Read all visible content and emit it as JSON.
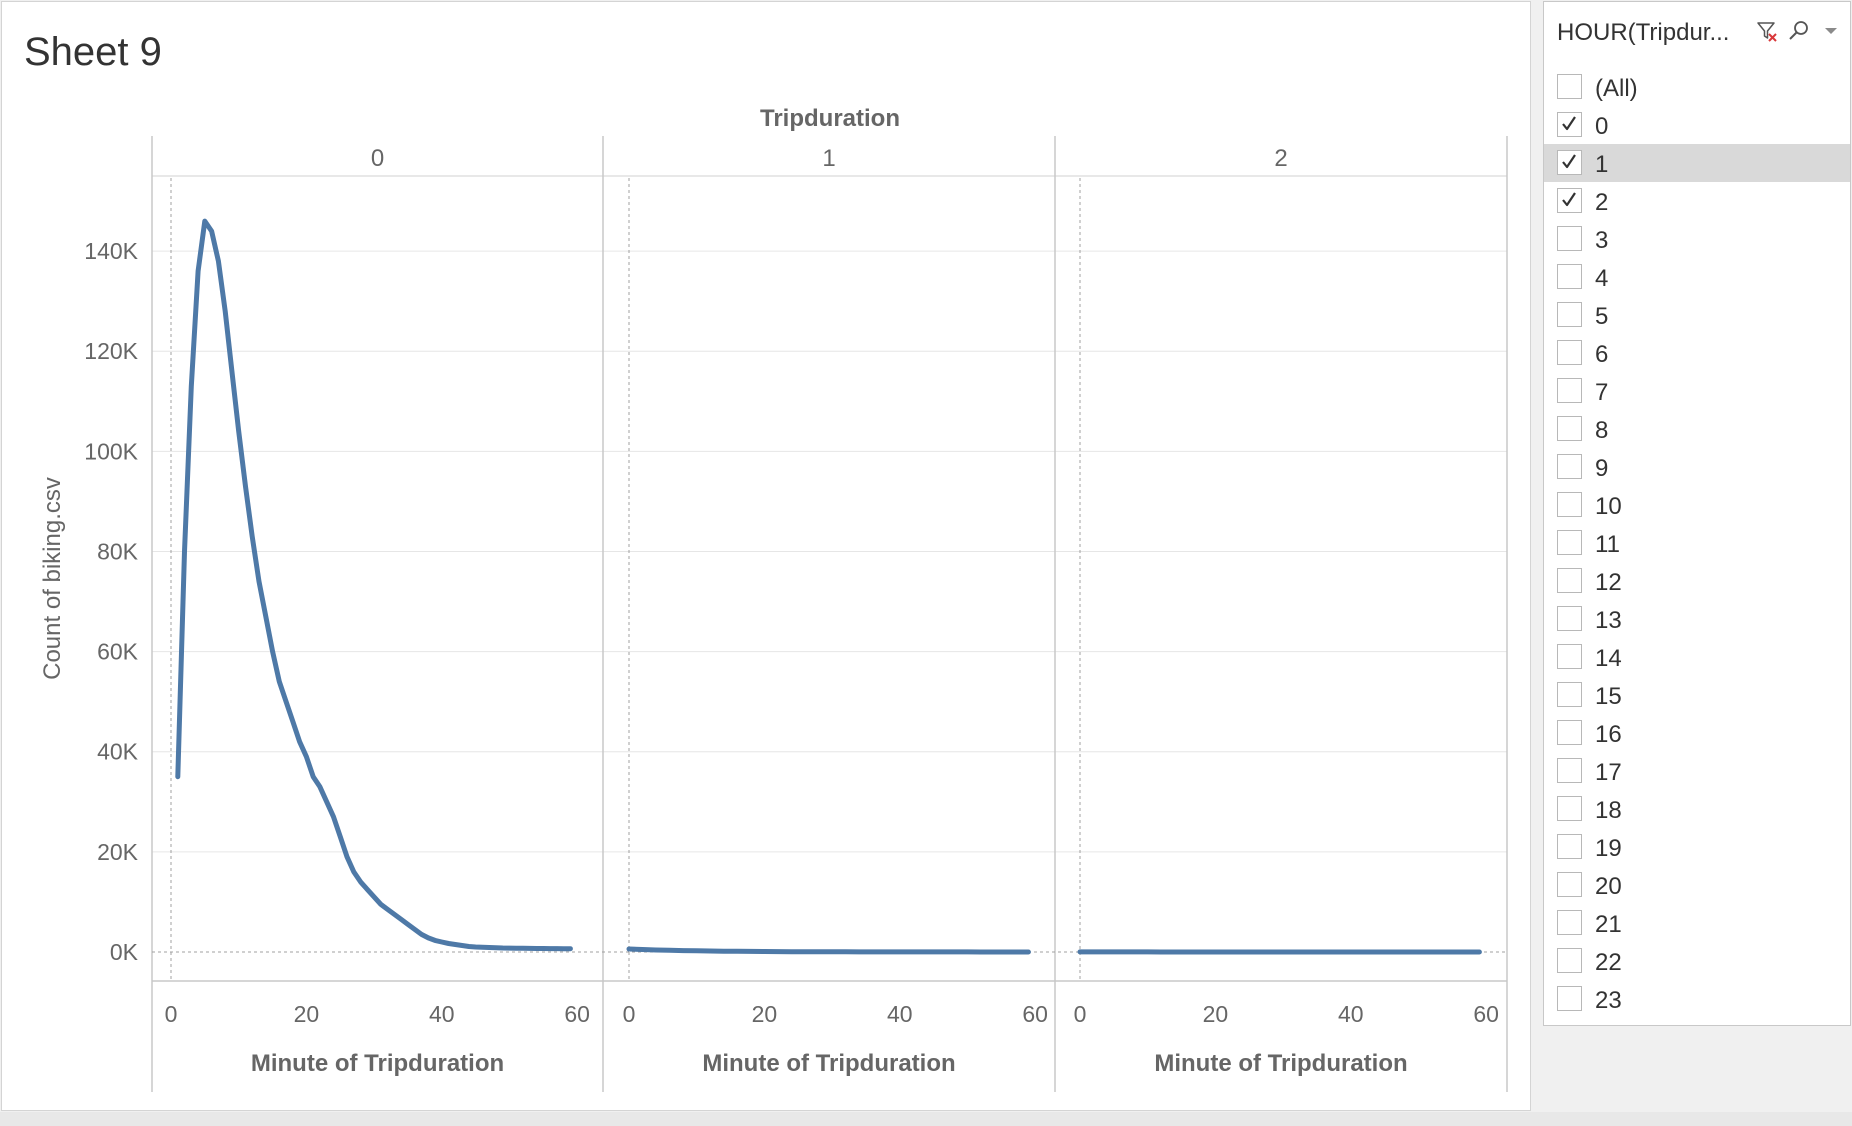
{
  "sheet": {
    "title": "Sheet 9"
  },
  "colors": {
    "line": "#4e79a7",
    "grid": "#e6e6e6",
    "panel_border": "#c8c8c8",
    "zero_line": "#a0a0a0",
    "text": "#666666",
    "hover_row": "#d9d9d9"
  },
  "chart_data": {
    "type": "line",
    "title": "",
    "column_header": "Tripduration",
    "xlabel": "Minute of Tripduration",
    "ylabel": "Count of biking.csv",
    "xlim": [
      0,
      60
    ],
    "ylim": [
      -5800,
      155000
    ],
    "y_ticks": [
      0,
      20000,
      40000,
      60000,
      80000,
      100000,
      120000,
      140000
    ],
    "y_tick_labels": [
      "0K",
      "20K",
      "40K",
      "60K",
      "80K",
      "100K",
      "120K",
      "140K"
    ],
    "x_ticks": [
      0,
      20,
      40,
      60
    ],
    "x_tick_labels": [
      "0",
      "20",
      "40",
      "60"
    ],
    "grid": true,
    "panels": [
      {
        "name": "0",
        "x": [
          1,
          2,
          3,
          4,
          5,
          6,
          7,
          8,
          9,
          10,
          11,
          12,
          13,
          14,
          15,
          16,
          17,
          18,
          19,
          20,
          21,
          22,
          23,
          24,
          25,
          26,
          27,
          28,
          29,
          30,
          31,
          32,
          33,
          34,
          35,
          36,
          37,
          38,
          39,
          40,
          41,
          42,
          43,
          44,
          45,
          46,
          47,
          48,
          49,
          50,
          51,
          52,
          53,
          54,
          55,
          56,
          57,
          58,
          59
        ],
        "y": [
          35000,
          80000,
          113000,
          136000,
          146000,
          144000,
          138000,
          128000,
          116000,
          104000,
          93000,
          83000,
          74000,
          67000,
          60000,
          54000,
          50000,
          46000,
          42000,
          39000,
          35000,
          33000,
          30000,
          27000,
          23000,
          19000,
          16000,
          14000,
          12500,
          11000,
          9500,
          8500,
          7500,
          6500,
          5500,
          4500,
          3500,
          2800,
          2300,
          2000,
          1700,
          1500,
          1300,
          1100,
          1000,
          950,
          900,
          850,
          800,
          780,
          760,
          740,
          720,
          700,
          690,
          680,
          670,
          660,
          650
        ]
      },
      {
        "name": "1",
        "x": [
          0,
          2,
          4,
          6,
          8,
          10,
          12,
          14,
          16,
          18,
          20,
          22,
          24,
          26,
          28,
          30,
          32,
          34,
          36,
          38,
          40,
          42,
          44,
          46,
          48,
          50,
          52,
          54,
          56,
          58,
          59
        ],
        "y": [
          600,
          500,
          400,
          330,
          280,
          230,
          190,
          160,
          130,
          110,
          90,
          75,
          60,
          50,
          40,
          30,
          25,
          20,
          15,
          12,
          10,
          8,
          6,
          5,
          4,
          3,
          2,
          2,
          1,
          1,
          1
        ]
      },
      {
        "name": "2",
        "x": [
          0,
          2,
          4,
          6,
          8,
          10,
          12,
          14,
          16,
          18,
          20,
          22,
          24,
          26,
          28,
          30,
          32,
          34,
          36,
          38,
          40,
          42,
          44,
          46,
          48,
          50,
          52,
          54,
          56,
          58,
          59
        ],
        "y": [
          5,
          4,
          4,
          3,
          3,
          3,
          2,
          2,
          2,
          2,
          2,
          1,
          1,
          1,
          1,
          1,
          1,
          1,
          1,
          1,
          1,
          1,
          1,
          1,
          1,
          1,
          1,
          1,
          1,
          1,
          1
        ]
      }
    ]
  },
  "filter": {
    "title": "HOUR(Tripdur...",
    "icons": [
      "clear-filter-icon",
      "search-icon",
      "dropdown-icon"
    ],
    "items": [
      {
        "label": "(All)",
        "checked": false
      },
      {
        "label": "0",
        "checked": true
      },
      {
        "label": "1",
        "checked": true,
        "hover": true
      },
      {
        "label": "2",
        "checked": true
      },
      {
        "label": "3",
        "checked": false
      },
      {
        "label": "4",
        "checked": false
      },
      {
        "label": "5",
        "checked": false
      },
      {
        "label": "6",
        "checked": false
      },
      {
        "label": "7",
        "checked": false
      },
      {
        "label": "8",
        "checked": false
      },
      {
        "label": "9",
        "checked": false
      },
      {
        "label": "10",
        "checked": false
      },
      {
        "label": "11",
        "checked": false
      },
      {
        "label": "12",
        "checked": false
      },
      {
        "label": "13",
        "checked": false
      },
      {
        "label": "14",
        "checked": false
      },
      {
        "label": "15",
        "checked": false
      },
      {
        "label": "16",
        "checked": false
      },
      {
        "label": "17",
        "checked": false
      },
      {
        "label": "18",
        "checked": false
      },
      {
        "label": "19",
        "checked": false
      },
      {
        "label": "20",
        "checked": false
      },
      {
        "label": "21",
        "checked": false
      },
      {
        "label": "22",
        "checked": false
      },
      {
        "label": "23",
        "checked": false
      }
    ]
  }
}
